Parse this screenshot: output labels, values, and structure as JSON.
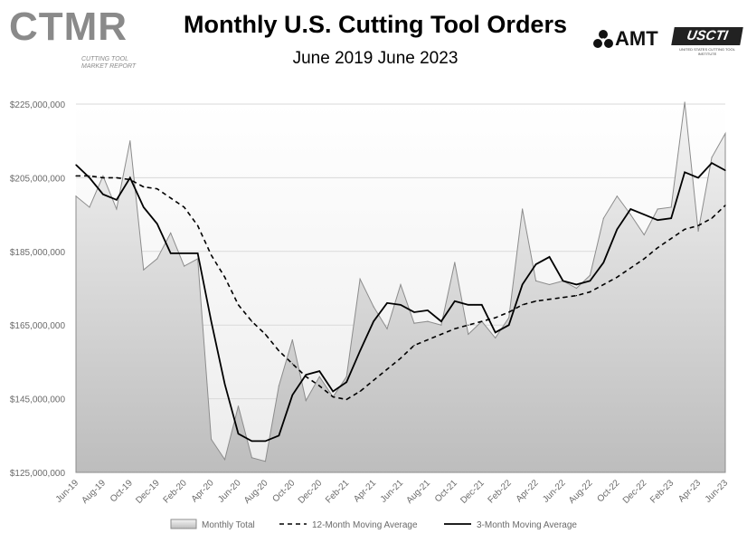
{
  "header": {
    "title": "Monthly U.S. Cutting Tool Orders",
    "subtitle": "June 2019 June 2023",
    "logos": {
      "ctmr": "CTMR",
      "ctmr_tagline": "CUTTING TOOL MARKET REPORT",
      "amt": "AMT",
      "uscti": "USCTI",
      "uscti_tagline": "UNITED STATES CUTTING TOOL INSTITUTE"
    }
  },
  "colors": {
    "area_fill_top": "#f4f4f4",
    "area_fill_bottom": "#bdbdbd",
    "area_stroke": "#8c8c8c",
    "plot_bg_top": "#ffffff",
    "plot_bg_bottom": "#ececec",
    "line": "#000000",
    "grid": "#d9d9d9",
    "axis_text": "#6a6a6a"
  },
  "chart_data": {
    "type": "line",
    "title": "Monthly U.S. Cutting Tool Orders",
    "subtitle": "June 2019 June 2023",
    "xlabel": "",
    "ylabel": "",
    "ylim": [
      125000000,
      225000000
    ],
    "yticks": [
      125000000,
      145000000,
      165000000,
      185000000,
      205000000,
      225000000
    ],
    "ytick_labels": [
      "$125,000,000",
      "$145,000,000",
      "$165,000,000",
      "$185,000,000",
      "$205,000,000",
      "$225,000,000"
    ],
    "grid": true,
    "legend_position": "bottom",
    "categories": [
      "Jun-19",
      "Jul-19",
      "Aug-19",
      "Sep-19",
      "Oct-19",
      "Nov-19",
      "Dec-19",
      "Jan-20",
      "Feb-20",
      "Mar-20",
      "Apr-20",
      "May-20",
      "Jun-20",
      "Jul-20",
      "Aug-20",
      "Sep-20",
      "Oct-20",
      "Nov-20",
      "Dec-20",
      "Jan-21",
      "Feb-21",
      "Mar-21",
      "Apr-21",
      "May-21",
      "Jun-21",
      "Jul-21",
      "Aug-21",
      "Sep-21",
      "Oct-21",
      "Nov-21",
      "Dec-21",
      "Jan-22",
      "Feb-22",
      "Mar-22",
      "Apr-22",
      "May-22",
      "Jun-22",
      "Jul-22",
      "Aug-22",
      "Sep-22",
      "Oct-22",
      "Nov-22",
      "Dec-22",
      "Jan-23",
      "Feb-23",
      "Mar-23",
      "Apr-23",
      "May-23",
      "Jun-23"
    ],
    "tick_labels": [
      "Jun-19",
      "Aug-19",
      "Oct-19",
      "Dec-19",
      "Feb-20",
      "Apr-20",
      "Jun-20",
      "Aug-20",
      "Oct-20",
      "Dec-20",
      "Feb-21",
      "Apr-21",
      "Jun-21",
      "Aug-21",
      "Oct-21",
      "Dec-21",
      "Feb-22",
      "Apr-22",
      "Jun-22",
      "Aug-22",
      "Oct-22",
      "Dec-22",
      "Feb-23",
      "Apr-23",
      "Jun-23"
    ],
    "series": [
      {
        "name": "Monthly Total",
        "style": "area",
        "values": [
          200000000,
          197000000,
          205500000,
          196500000,
          215000000,
          180000000,
          183000000,
          190000000,
          181000000,
          183000000,
          134000000,
          128500000,
          143000000,
          129000000,
          128000000,
          148500000,
          161000000,
          144500000,
          151000000,
          145500000,
          151000000,
          177500000,
          170000000,
          164000000,
          176000000,
          165500000,
          166000000,
          165000000,
          182000000,
          162500000,
          166000000,
          161500000,
          167000000,
          196500000,
          177000000,
          176000000,
          177000000,
          175000000,
          178500000,
          194000000,
          200000000,
          195000000,
          189500000,
          196500000,
          197000000,
          225500000,
          190500000,
          210500000,
          217000000
        ]
      },
      {
        "name": "12-Month Moving Average",
        "style": "dashed",
        "values": [
          205500000,
          205500000,
          205000000,
          205000000,
          204500000,
          202500000,
          202000000,
          199500000,
          197000000,
          192000000,
          184000000,
          178000000,
          170500000,
          166000000,
          162500000,
          158000000,
          154500000,
          151000000,
          148500000,
          145500000,
          144800000,
          147000000,
          150000000,
          153000000,
          156000000,
          159500000,
          161000000,
          162500000,
          164000000,
          165000000,
          166000000,
          167000000,
          168500000,
          170500000,
          171500000,
          172000000,
          172500000,
          173000000,
          174000000,
          176000000,
          178000000,
          180500000,
          183000000,
          186000000,
          188500000,
          191000000,
          192000000,
          194000000,
          197500000
        ]
      },
      {
        "name": "3-Month Moving Average",
        "style": "solid",
        "values": [
          208500000,
          205000000,
          200500000,
          199000000,
          205000000,
          197000000,
          192500000,
          184500000,
          184500000,
          184500000,
          166000000,
          149000000,
          135500000,
          133500000,
          133500000,
          135000000,
          146000000,
          151500000,
          152500000,
          147000000,
          149500000,
          158000000,
          166000000,
          171000000,
          170500000,
          168500000,
          169000000,
          166000000,
          171500000,
          170500000,
          170500000,
          163000000,
          165000000,
          176000000,
          181500000,
          183500000,
          177000000,
          176000000,
          177000000,
          182000000,
          191000000,
          196500000,
          195000000,
          193500000,
          194000000,
          206500000,
          205000000,
          209000000,
          207000000
        ]
      }
    ]
  }
}
